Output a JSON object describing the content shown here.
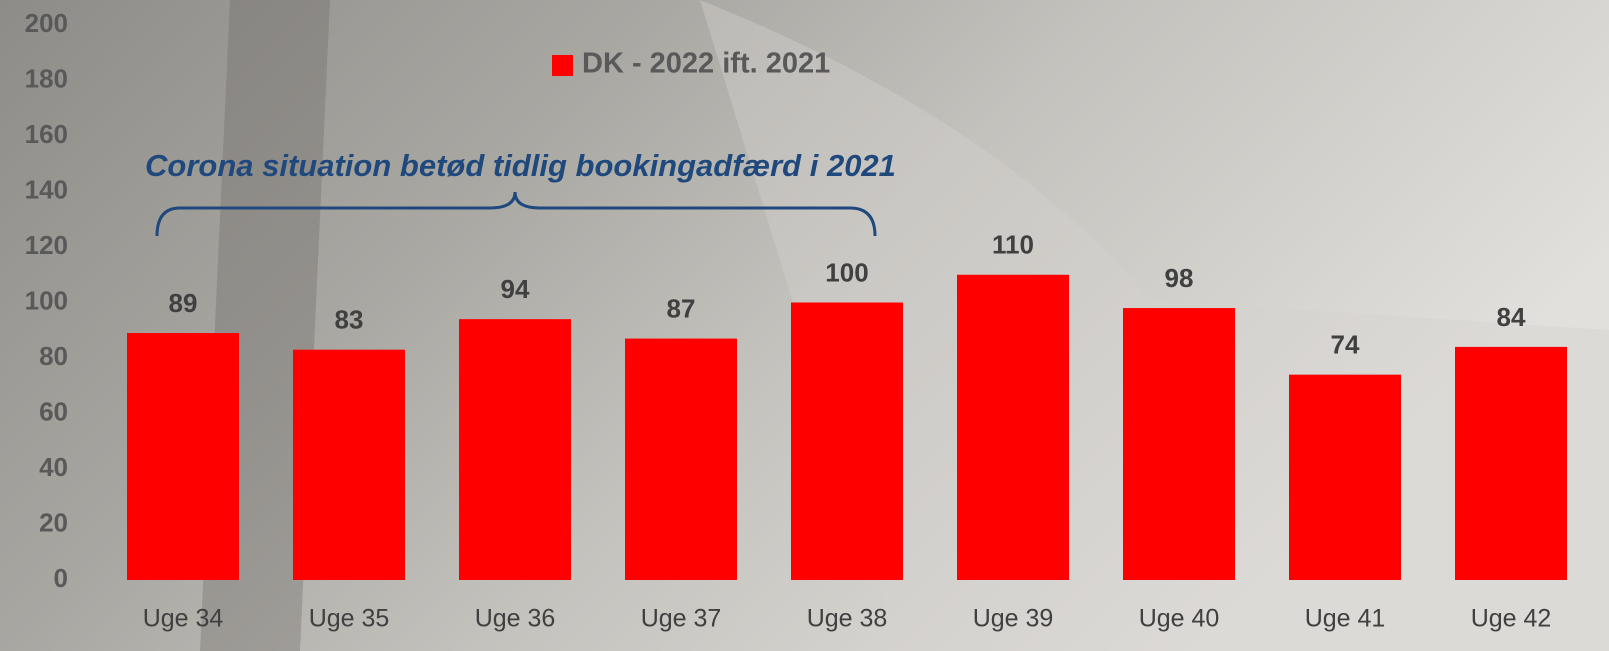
{
  "chart_data": {
    "type": "bar",
    "categories": [
      "Uge 34",
      "Uge 35",
      "Uge 36",
      "Uge 37",
      "Uge 38",
      "Uge 39",
      "Uge 40",
      "Uge 41",
      "Uge 42"
    ],
    "series": [
      {
        "name": "DK - 2022 ift. 2021",
        "color": "#ff0000",
        "values": [
          89,
          83,
          94,
          87,
          100,
          110,
          98,
          74,
          84
        ]
      }
    ],
    "ylim": [
      0,
      200
    ],
    "yticks": [
      0,
      20,
      40,
      60,
      80,
      100,
      120,
      140,
      160,
      180,
      200
    ],
    "annotation": "Corona situation betød tidlig bookingadfærd i 2021",
    "legend": "top",
    "grid": false
  }
}
